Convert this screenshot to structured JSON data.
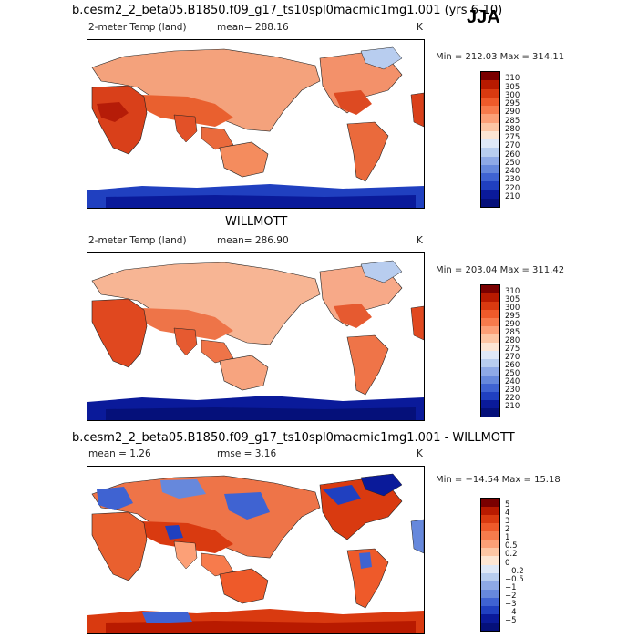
{
  "season_label": "JJA",
  "panels": [
    {
      "title": "b.cesm2_2_beta05.B1850.f09_g17_ts10spl0macmic1mg1.001 (yrs 6-10)",
      "variable": "2-meter Temp (land)",
      "stat1": "mean= 288.16",
      "stat2": "",
      "units": "K",
      "minmax": "Min = 212.03 Max = 314.11",
      "colorbar_labels": [
        "310",
        "305",
        "300",
        "295",
        "290",
        "285",
        "280",
        "275",
        "270",
        "260",
        "250",
        "240",
        "230",
        "220",
        "210"
      ],
      "colorbar_colors": [
        "#7a0000",
        "#b81a00",
        "#d93a10",
        "#ee5a2a",
        "#f77b4c",
        "#fca077",
        "#fdc6a4",
        "#fde6d4",
        "#dfe8f7",
        "#b8cdef",
        "#8ea9e6",
        "#6688dc",
        "#3f63d2",
        "#2040c0",
        "#0a1a9a",
        "#05107a"
      ],
      "map_caption": "Land 2-meter temperature map"
    },
    {
      "title": "WILLMOTT",
      "variable": "2-meter Temp (land)",
      "stat1": "mean= 286.90",
      "stat2": "",
      "units": "K",
      "minmax": "Min = 203.04 Max = 311.42",
      "colorbar_labels": [
        "310",
        "305",
        "300",
        "295",
        "290",
        "285",
        "280",
        "275",
        "270",
        "260",
        "250",
        "240",
        "230",
        "220",
        "210"
      ],
      "colorbar_colors": [
        "#7a0000",
        "#b81a00",
        "#d93a10",
        "#ee5a2a",
        "#f77b4c",
        "#fca077",
        "#fdc6a4",
        "#fde6d4",
        "#dfe8f7",
        "#b8cdef",
        "#8ea9e6",
        "#6688dc",
        "#3f63d2",
        "#2040c0",
        "#0a1a9a",
        "#05107a"
      ],
      "map_caption": "Observed land temperature map"
    },
    {
      "title": "b.cesm2_2_beta05.B1850.f09_g17_ts10spl0macmic1mg1.001 - WILLMOTT",
      "variable": "",
      "stat1": "mean =    1.26",
      "stat2": "rmse =    3.16",
      "units": "K",
      "minmax": "Min = −14.54 Max =  15.18",
      "colorbar_labels": [
        "5",
        "4",
        "3",
        "2",
        "1",
        "0.5",
        "0.2",
        "0",
        "−0.2",
        "−0.5",
        "−1",
        "−2",
        "−3",
        "−4",
        "−5"
      ],
      "colorbar_colors": [
        "#7a0000",
        "#b81a00",
        "#d93a10",
        "#ee5a2a",
        "#f77b4c",
        "#fca077",
        "#fdc6a4",
        "#fde6d4",
        "#dfe8f7",
        "#b8cdef",
        "#8ea9e6",
        "#6688dc",
        "#3f63d2",
        "#2040c0",
        "#0a1a9a",
        "#05107a"
      ],
      "map_caption": "Difference map"
    }
  ]
}
